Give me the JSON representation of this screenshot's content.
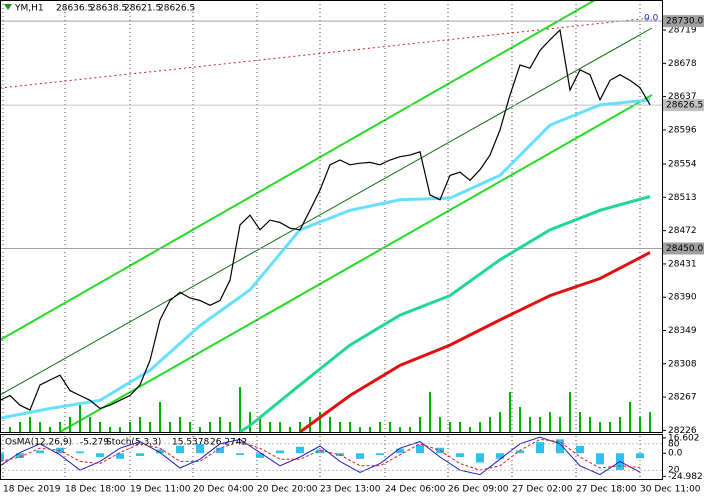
{
  "chart_data": {
    "type": "line",
    "title": "YM,H1",
    "header_values": [
      28636.5,
      28638.5,
      28621.5,
      28626.5
    ],
    "annotation": "0.0",
    "xlim": [
      0,
      66.2
    ],
    "xticks": [
      {
        "value": 0.3,
        "label": "18 Dec 2019"
      },
      {
        "value": 6.5,
        "label": "18 Dec 18:00"
      },
      {
        "value": 13.0,
        "label": "19 Dec 11:00"
      },
      {
        "value": 19.3,
        "label": "20 Dec 04:00"
      },
      {
        "value": 25.7,
        "label": "20 Dec 20:00"
      },
      {
        "value": 32.0,
        "label": "23 Dec 13:00"
      },
      {
        "value": 38.5,
        "label": "24 Dec 06:00"
      },
      {
        "value": 44.8,
        "label": "26 Dec 09:00"
      },
      {
        "value": 51.2,
        "label": "27 Dec 02:00"
      },
      {
        "value": 57.6,
        "label": "27 Dec 18:00"
      },
      {
        "value": 64.0,
        "label": "30 Dec 11:00"
      }
    ],
    "ylim": [
      28224,
      28756
    ],
    "yticks": [
      28719,
      28678,
      28637,
      28596,
      28554,
      28513,
      28472,
      28431,
      28390,
      28349,
      28308,
      28267,
      28226
    ],
    "levels": [
      {
        "value": 28730,
        "label": "28730.0",
        "color": "#a0a0a0"
      },
      {
        "value": 28450,
        "label": "28450.0",
        "color": "#a0a0a0"
      },
      {
        "value": 28626.5,
        "label": "28626.5",
        "color": "#c0c0c0"
      }
    ],
    "x": [
      0,
      1,
      2,
      3,
      4,
      5,
      6,
      7,
      8,
      9,
      10,
      11,
      12,
      13,
      14,
      15,
      16,
      17,
      18,
      19,
      20,
      21,
      22,
      23,
      24,
      25,
      26,
      27,
      28,
      29,
      30,
      31,
      32,
      33,
      34,
      35,
      36,
      37,
      38,
      39,
      40,
      41,
      42,
      43,
      44,
      45,
      46,
      47,
      48,
      49,
      50,
      51,
      52,
      53,
      54,
      55,
      56,
      57,
      58,
      59,
      60,
      61,
      62,
      63,
      64,
      65
    ],
    "price": {
      "color": "#000000",
      "values": [
        28263,
        28269,
        28257,
        28251,
        28282,
        28288,
        28294,
        28275,
        28269,
        28263,
        28253,
        28257,
        28263,
        28269,
        28282,
        28312,
        28362,
        28386,
        28396,
        28389,
        28386,
        28380,
        28386,
        28411,
        28479,
        28491,
        28473,
        28485,
        28482,
        28475,
        28473,
        28497,
        28522,
        28553,
        28559,
        28553,
        28555,
        28556,
        28553,
        28559,
        28563,
        28565,
        28569,
        28516,
        28510,
        28540,
        28544,
        28534,
        28547,
        28565,
        28596,
        28639,
        28676,
        28672,
        28694,
        28707,
        28719,
        28645,
        28670,
        28664,
        28633,
        28657,
        28664,
        28657,
        28648,
        28627
      ]
    },
    "volume": {
      "color": "#00b000",
      "ylim": [
        0,
        12
      ],
      "values": [
        2,
        1,
        2,
        3,
        2,
        1,
        2,
        3,
        6,
        3,
        2,
        1,
        1,
        2,
        3,
        2,
        6,
        2,
        3,
        2,
        1,
        2,
        3,
        2,
        9,
        4,
        3,
        2,
        2,
        1,
        2,
        3,
        4,
        3,
        2,
        2,
        1,
        1,
        2,
        2,
        1,
        1,
        3,
        8,
        3,
        2,
        2,
        1,
        2,
        3,
        4,
        8,
        5,
        3,
        3,
        4,
        3,
        8,
        4,
        3,
        2,
        2,
        3,
        6,
        3,
        4
      ]
    },
    "series": [
      {
        "color": "#66e0ff",
        "x": [
          0,
          5,
          10,
          15,
          20,
          25,
          30,
          35,
          40,
          45,
          50,
          55,
          60,
          65
        ],
        "values": [
          28241,
          28253,
          28263,
          28300,
          28355,
          28399,
          28473,
          28497,
          28510,
          28512,
          28540,
          28602,
          28627,
          28633
        ]
      },
      {
        "color": "#20d890",
        "x": [
          24,
          25,
          30,
          35,
          40,
          45,
          50,
          55,
          60,
          65
        ],
        "values": [
          28224,
          28232,
          28282,
          28331,
          28368,
          28392,
          28436,
          28473,
          28497,
          28514
        ]
      },
      {
        "color": "#e01010",
        "x": [
          30,
          35,
          40,
          45,
          50,
          55,
          60,
          65
        ],
        "values": [
          28224,
          28269,
          28306,
          28331,
          28362,
          28392,
          28413,
          28445
        ]
      }
    ],
    "oscillator": {
      "osma_label": "OsMA(12,26,9)",
      "osma_value": -5.279,
      "stoch_label": "Stoch(5,3,3)",
      "stoch_main": 15.5378,
      "stoch_signal": 26.2742,
      "ylim": [
        -27.8,
        19.7
      ],
      "yticks": [
        16.602,
        {
          "value": 0,
          "label": "0.0"
        },
        -24.982
      ],
      "stoch_ylim": [
        0,
        100
      ],
      "stoch_ticks": [
        80,
        20
      ],
      "x": [
        0,
        2,
        4,
        6,
        8,
        10,
        12,
        14,
        16,
        18,
        20,
        22,
        24,
        26,
        28,
        30,
        32,
        34,
        36,
        38,
        40,
        42,
        44,
        46,
        48,
        50,
        52,
        54,
        56,
        58,
        60,
        62,
        64
      ],
      "osma": {
        "color": "#30c0f0",
        "values": [
          -8,
          -5,
          3,
          6,
          2,
          -4,
          -6,
          -3,
          4,
          8,
          10,
          6,
          -2,
          -5,
          3,
          7,
          4,
          -3,
          -6,
          -2,
          5,
          9,
          6,
          -4,
          -10,
          -6,
          3,
          12,
          15,
          8,
          -12,
          -18,
          -5.279
        ]
      },
      "stoch": {
        "color": "#2020c0",
        "values": [
          30,
          60,
          80,
          55,
          20,
          40,
          70,
          85,
          60,
          25,
          45,
          80,
          90,
          60,
          30,
          50,
          75,
          40,
          15,
          35,
          70,
          85,
          50,
          20,
          10,
          45,
          80,
          95,
          80,
          30,
          10,
          40,
          15.5378
        ]
      },
      "signal": {
        "color": "#e02020",
        "values": [
          40,
          50,
          70,
          65,
          40,
          35,
          60,
          80,
          70,
          40,
          40,
          70,
          85,
          70,
          45,
          45,
          65,
          55,
          30,
          30,
          55,
          80,
          65,
          35,
          20,
          30,
          65,
          90,
          85,
          50,
          25,
          30,
          26.2742
        ]
      }
    }
  }
}
